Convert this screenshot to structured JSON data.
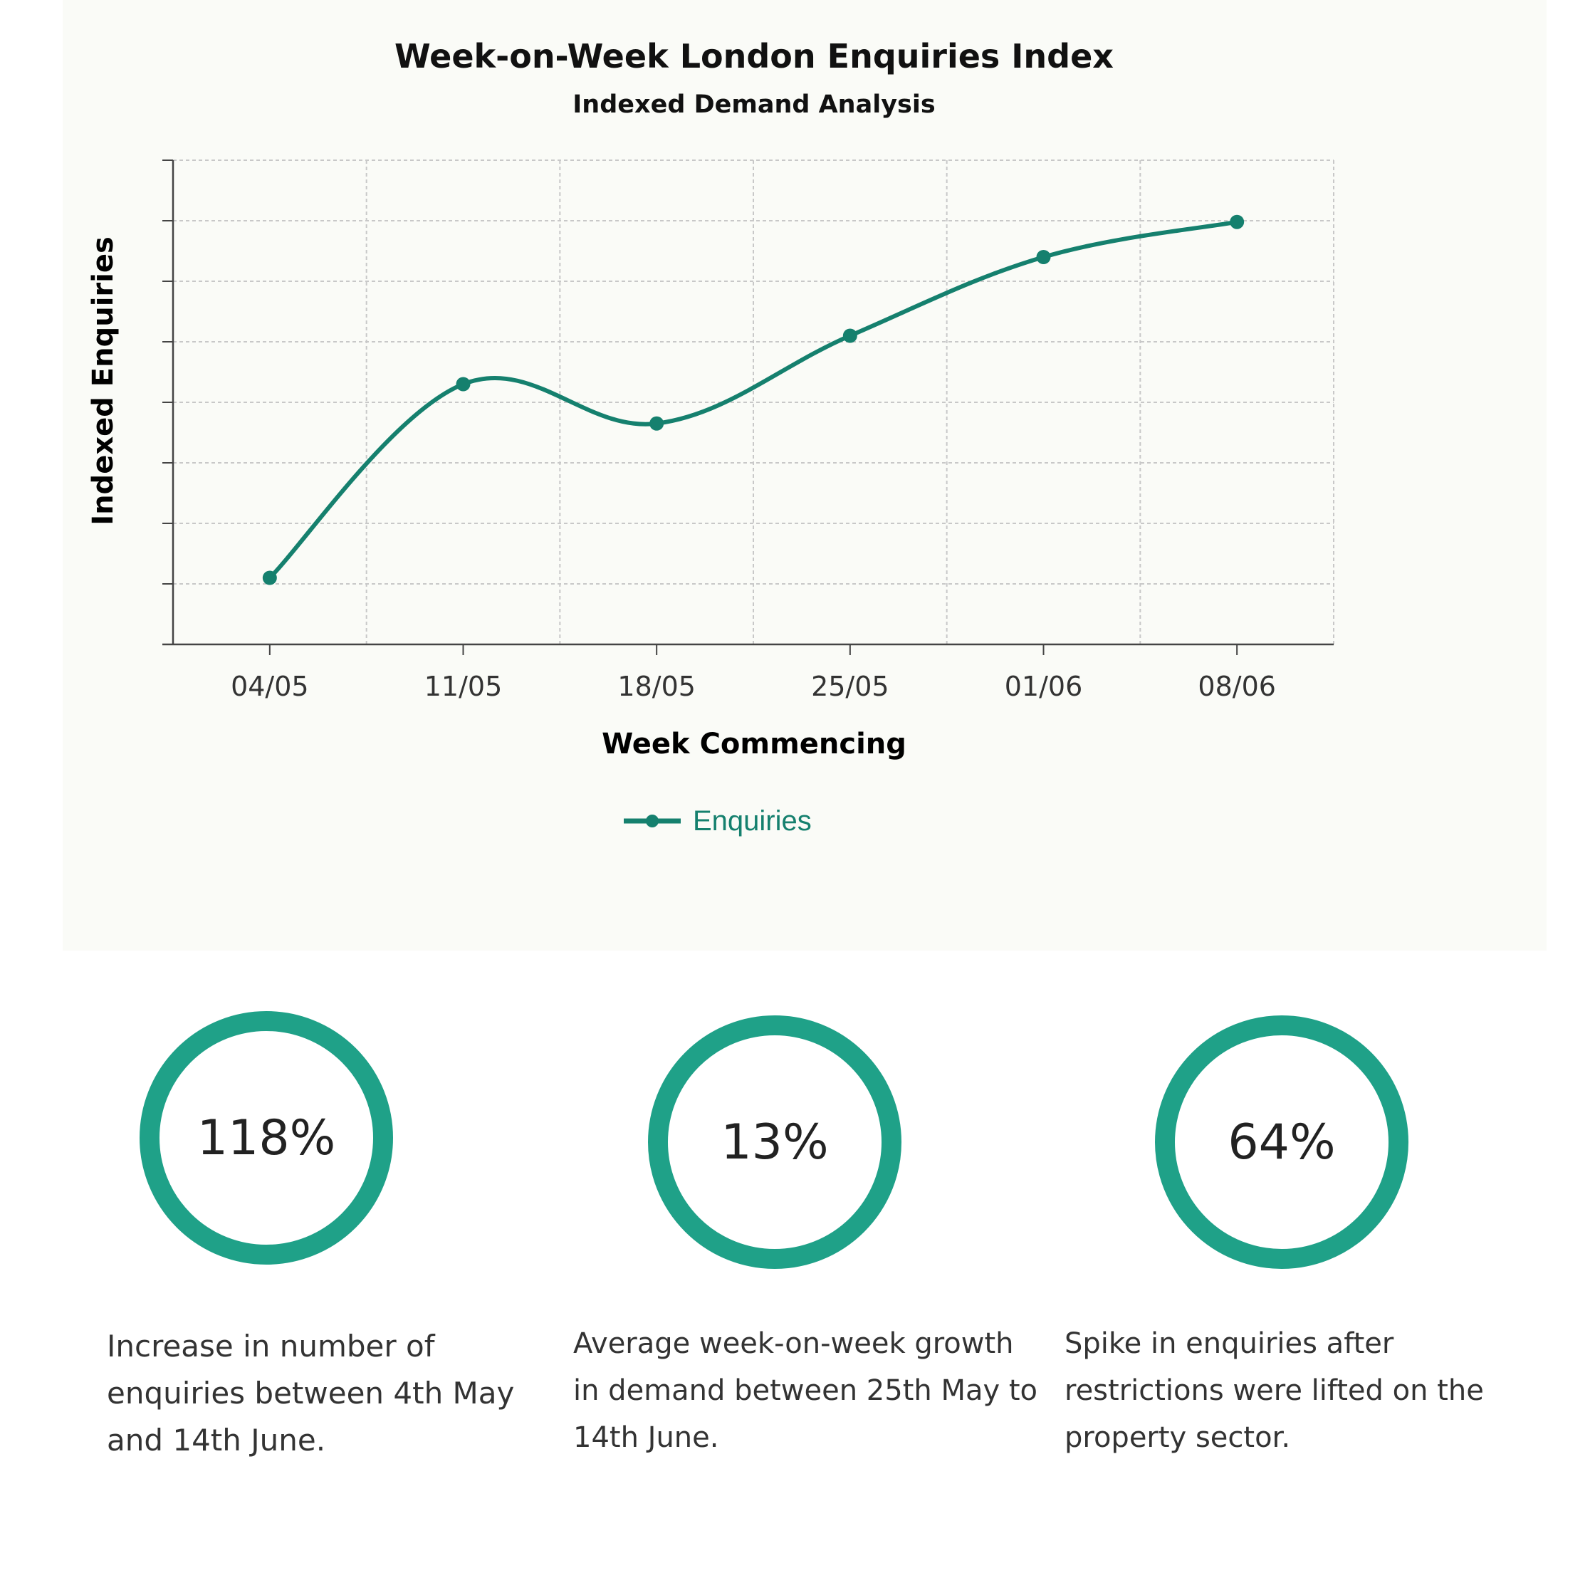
{
  "chart_data": {
    "type": "line",
    "title": "Week-on-Week London Enquiries Index",
    "subtitle": "Indexed Demand Analysis",
    "xlabel": "Week Commencing",
    "ylabel": "Indexed Enquiries",
    "categories": [
      "04/05",
      "11/05",
      "18/05",
      "25/05",
      "01/06",
      "08/06"
    ],
    "series": [
      {
        "name": "Enquiries",
        "values": [
          1.1,
          4.3,
          3.65,
          5.1,
          6.4,
          6.98
        ]
      }
    ],
    "ylim": [
      0,
      8
    ],
    "grid": true,
    "legend": "bottom",
    "color": "#15806e"
  },
  "stats": [
    {
      "value": "118%",
      "lines": [
        "Increase in number of",
        "enquiries between 4th May",
        "and 14th June."
      ]
    },
    {
      "value": "13%",
      "lines": [
        "Average week-on-week growth",
        "in demand between 25th May to",
        "14th June."
      ]
    },
    {
      "value": "64%",
      "lines": [
        "Spike in enquiries after",
        "restrictions were lifted on the",
        "property sector."
      ]
    }
  ],
  "colors": {
    "ring": "#1fa188",
    "line": "#15806e",
    "panel": "#fafbf7"
  }
}
